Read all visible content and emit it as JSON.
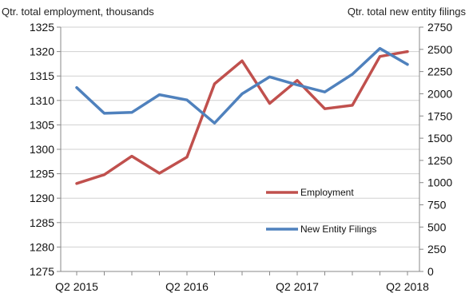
{
  "chart_data": {
    "type": "line",
    "title": "",
    "y_left_label": "Qtr. total employment, thousands",
    "y_right_label": "Qtr. total  new entity filings",
    "xlabel": "",
    "x_ticks": [
      "Q2 2015",
      "Q2 2016",
      "Q2 2017",
      "Q2 2018"
    ],
    "x_tick_positions": [
      0,
      4,
      8,
      12
    ],
    "y_left_ticks": [
      "1325",
      "1320",
      "1315",
      "1310",
      "1305",
      "1300",
      "1295",
      "1290",
      "1285",
      "1280",
      "1275"
    ],
    "y_right_ticks": [
      "2750",
      "2500",
      "2250",
      "2000",
      "1750",
      "1500",
      "1250",
      "1000",
      "750",
      "500",
      "250",
      "0"
    ],
    "ylim_left": [
      1275,
      1325
    ],
    "ylim_right": [
      0,
      2750
    ],
    "grid": "horizontal",
    "legend_position": "lower-right",
    "x": [
      0,
      1,
      2,
      3,
      4,
      5,
      6,
      7,
      8,
      9,
      10,
      11,
      12
    ],
    "series": [
      {
        "name": "Employment",
        "axis": "left",
        "color": "#c0504d",
        "values": [
          1293.0,
          1294.8,
          1298.6,
          1295.1,
          1298.4,
          1313.4,
          1318.1,
          1309.4,
          1314.1,
          1308.3,
          1309.0,
          1319.0,
          1320.0
        ]
      },
      {
        "name": "New Entity Filings",
        "axis": "right",
        "color": "#4f81bd",
        "values": [
          2070,
          1780,
          1790,
          1990,
          1930,
          1670,
          2000,
          2190,
          2100,
          2020,
          2220,
          2510,
          2330
        ]
      }
    ]
  }
}
